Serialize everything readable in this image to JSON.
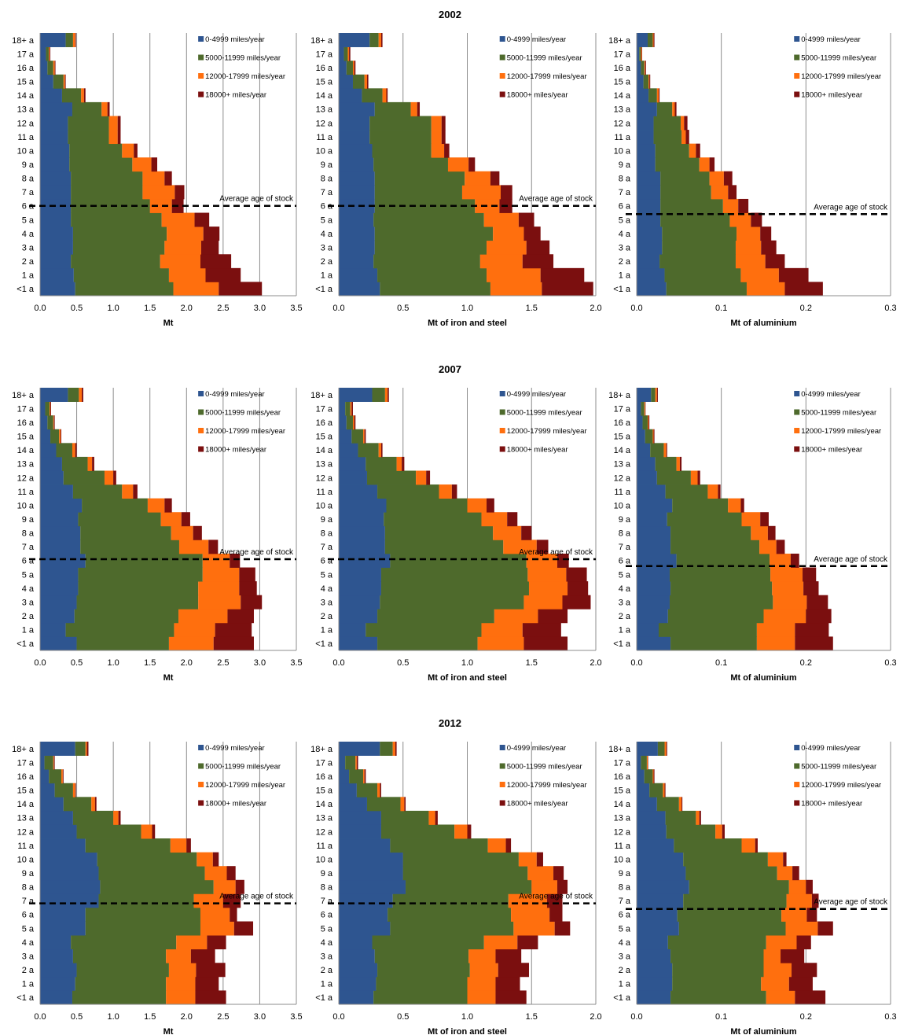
{
  "years": [
    "2002",
    "2007",
    "2012"
  ],
  "legend": [
    "0‐4999 miles/year",
    "5000‐11999 miles/year",
    "12000‐17999 miles/year",
    "18000+ miles/year"
  ],
  "avg_label": "Average age of stock",
  "age_labels": [
    "<1 a",
    "1 a",
    "2 a",
    "3 a",
    "4 a",
    "5 a",
    "6 a",
    "7 a",
    "8 a",
    "9 a",
    "10 a",
    "11 a",
    "12 a",
    "13 a",
    "14 a",
    "15 a",
    "16 a",
    "17 a",
    "18+ a"
  ],
  "colors": [
    "#2e5590",
    "#4e6a2c",
    "#ff6f0e",
    "#7b0f0f"
  ],
  "chart_data": [
    {
      "type": "bar",
      "orientation": "horizontal",
      "stacked": true,
      "year": "2002",
      "xlabel": "Mt",
      "xlim": [
        0,
        3.5
      ],
      "xticks": [
        "0.0",
        "0.5",
        "1.0",
        "1.5",
        "2.0",
        "2.5",
        "3.0",
        "3.5"
      ],
      "average_age": 6.0,
      "series": [
        {
          "name": "0‐4999 miles/year",
          "values": [
            0.48,
            0.46,
            0.42,
            0.45,
            0.45,
            0.42,
            0.42,
            0.42,
            0.42,
            0.4,
            0.4,
            0.38,
            0.38,
            0.44,
            0.3,
            0.18,
            0.1,
            0.08,
            0.35
          ]
        },
        {
          "name": "5000‐11999 miles/year",
          "values": [
            1.34,
            1.3,
            1.22,
            1.25,
            1.28,
            1.24,
            1.08,
            0.98,
            0.98,
            0.86,
            0.72,
            0.56,
            0.56,
            0.4,
            0.26,
            0.14,
            0.08,
            0.04,
            0.1
          ]
        },
        {
          "name": "12000‐17999 miles/year",
          "values": [
            0.62,
            0.5,
            0.55,
            0.5,
            0.5,
            0.45,
            0.3,
            0.44,
            0.3,
            0.26,
            0.16,
            0.12,
            0.12,
            0.08,
            0.04,
            0.02,
            0.02,
            0.01,
            0.03
          ]
        },
        {
          "name": "18000+ miles/year",
          "values": [
            0.59,
            0.48,
            0.42,
            0.24,
            0.22,
            0.2,
            0.16,
            0.13,
            0.1,
            0.08,
            0.05,
            0.04,
            0.04,
            0.03,
            0.02,
            0.01,
            0.01,
            0.01,
            0.01
          ]
        }
      ]
    },
    {
      "type": "bar",
      "orientation": "horizontal",
      "stacked": true,
      "year": "2002",
      "xlabel": "Mt of iron and steel",
      "xlim": [
        0,
        2.0
      ],
      "xticks": [
        "0.0",
        "0.5",
        "1.0",
        "1.5",
        "2.0"
      ],
      "average_age": 6.0,
      "series": [
        {
          "name": "0‐4999 miles/year",
          "values": [
            0.32,
            0.3,
            0.27,
            0.28,
            0.28,
            0.27,
            0.28,
            0.28,
            0.28,
            0.27,
            0.26,
            0.24,
            0.24,
            0.28,
            0.18,
            0.11,
            0.06,
            0.04,
            0.24
          ]
        },
        {
          "name": "5000‐11999 miles/year",
          "values": [
            0.86,
            0.85,
            0.83,
            0.87,
            0.92,
            0.86,
            0.78,
            0.68,
            0.7,
            0.58,
            0.46,
            0.48,
            0.48,
            0.28,
            0.16,
            0.09,
            0.05,
            0.03,
            0.07
          ]
        },
        {
          "name": "12000‐17999 miles/year",
          "values": [
            0.4,
            0.42,
            0.33,
            0.31,
            0.24,
            0.27,
            0.19,
            0.3,
            0.2,
            0.16,
            0.1,
            0.08,
            0.08,
            0.05,
            0.03,
            0.02,
            0.01,
            0.01,
            0.02
          ]
        },
        {
          "name": "18000+ miles/year",
          "values": [
            0.4,
            0.34,
            0.24,
            0.18,
            0.13,
            0.12,
            0.1,
            0.09,
            0.07,
            0.05,
            0.04,
            0.03,
            0.03,
            0.02,
            0.01,
            0.01,
            0.01,
            0.01,
            0.01
          ]
        }
      ]
    },
    {
      "type": "bar",
      "orientation": "horizontal",
      "stacked": true,
      "year": "2002",
      "xlabel": "Mt of aluminium",
      "xlim": [
        0,
        0.3
      ],
      "xticks": [
        "0.0",
        "0.1",
        "0.2",
        "0.3"
      ],
      "average_age": 5.4,
      "series": [
        {
          "name": "0‐4999 miles/year",
          "values": [
            0.035,
            0.033,
            0.027,
            0.03,
            0.03,
            0.028,
            0.028,
            0.028,
            0.028,
            0.022,
            0.022,
            0.02,
            0.02,
            0.024,
            0.014,
            0.008,
            0.005,
            0.003,
            0.013
          ]
        },
        {
          "name": "5000‐11999 miles/year",
          "values": [
            0.095,
            0.09,
            0.09,
            0.087,
            0.088,
            0.082,
            0.074,
            0.06,
            0.058,
            0.052,
            0.04,
            0.033,
            0.032,
            0.018,
            0.01,
            0.006,
            0.004,
            0.002,
            0.006
          ]
        },
        {
          "name": "12000‐17999 miles/year",
          "values": [
            0.045,
            0.045,
            0.035,
            0.03,
            0.028,
            0.025,
            0.018,
            0.02,
            0.017,
            0.012,
            0.008,
            0.005,
            0.004,
            0.003,
            0.002,
            0.001,
            0.001,
            0.001,
            0.001
          ]
        },
        {
          "name": "18000+ miles/year",
          "values": [
            0.045,
            0.035,
            0.023,
            0.018,
            0.013,
            0.013,
            0.012,
            0.01,
            0.01,
            0.006,
            0.005,
            0.004,
            0.004,
            0.002,
            0.001,
            0.001,
            0.001,
            0.0005,
            0.001
          ]
        }
      ]
    },
    {
      "type": "bar",
      "orientation": "horizontal",
      "stacked": true,
      "year": "2007",
      "xlabel": "Mt",
      "xlim": [
        0,
        3.5
      ],
      "xticks": [
        "0.0",
        "0.5",
        "1.0",
        "1.5",
        "2.0",
        "2.5",
        "3.0",
        "3.5"
      ],
      "average_age": 6.1,
      "series": [
        {
          "name": "0‐4999 miles/year",
          "values": [
            0.5,
            0.35,
            0.47,
            0.5,
            0.52,
            0.52,
            0.62,
            0.55,
            0.55,
            0.52,
            0.57,
            0.45,
            0.32,
            0.3,
            0.22,
            0.14,
            0.1,
            0.07,
            0.38
          ]
        },
        {
          "name": "5000‐11999 miles/year",
          "values": [
            1.26,
            1.48,
            1.42,
            1.66,
            1.64,
            1.7,
            1.6,
            1.35,
            1.24,
            1.13,
            0.9,
            0.67,
            0.56,
            0.35,
            0.22,
            0.12,
            0.08,
            0.06,
            0.15
          ]
        },
        {
          "name": "12000‐17999 miles/year",
          "values": [
            0.61,
            0.56,
            0.67,
            0.58,
            0.56,
            0.5,
            0.37,
            0.4,
            0.3,
            0.28,
            0.23,
            0.15,
            0.12,
            0.06,
            0.04,
            0.02,
            0.01,
            0.01,
            0.04
          ]
        },
        {
          "name": "18000+ miles/year",
          "values": [
            0.55,
            0.5,
            0.36,
            0.29,
            0.24,
            0.22,
            0.14,
            0.13,
            0.12,
            0.12,
            0.1,
            0.06,
            0.04,
            0.03,
            0.02,
            0.01,
            0.01,
            0.01,
            0.02
          ]
        }
      ]
    },
    {
      "type": "bar",
      "orientation": "horizontal",
      "stacked": true,
      "year": "2007",
      "xlabel": "Mt of iron and steel",
      "xlim": [
        0,
        2.0
      ],
      "xticks": [
        "0.0",
        "0.5",
        "1.0",
        "1.5",
        "2.0"
      ],
      "average_age": 6.1,
      "series": [
        {
          "name": "0‐4999 miles/year",
          "values": [
            0.3,
            0.21,
            0.3,
            0.32,
            0.33,
            0.33,
            0.4,
            0.36,
            0.36,
            0.35,
            0.37,
            0.3,
            0.22,
            0.21,
            0.15,
            0.1,
            0.06,
            0.05,
            0.26
          ]
        },
        {
          "name": "5000‐11999 miles/year",
          "values": [
            0.78,
            0.9,
            0.91,
            1.12,
            1.15,
            1.14,
            1.06,
            0.92,
            0.84,
            0.76,
            0.63,
            0.48,
            0.38,
            0.24,
            0.16,
            0.09,
            0.05,
            0.04,
            0.1
          ]
        },
        {
          "name": "12000‐17999 miles/year",
          "values": [
            0.36,
            0.32,
            0.34,
            0.3,
            0.3,
            0.3,
            0.24,
            0.26,
            0.22,
            0.2,
            0.15,
            0.1,
            0.08,
            0.04,
            0.02,
            0.01,
            0.01,
            0.01,
            0.02
          ]
        },
        {
          "name": "18000+ miles/year",
          "values": [
            0.34,
            0.3,
            0.23,
            0.22,
            0.16,
            0.16,
            0.09,
            0.09,
            0.08,
            0.08,
            0.06,
            0.04,
            0.03,
            0.02,
            0.01,
            0.01,
            0.01,
            0.01,
            0.01
          ]
        }
      ]
    },
    {
      "type": "bar",
      "orientation": "horizontal",
      "stacked": true,
      "year": "2007",
      "xlabel": "Mt of aluminium",
      "xlim": [
        0,
        0.3
      ],
      "xticks": [
        "0.0",
        "0.1",
        "0.2",
        "0.3"
      ],
      "average_age": 5.6,
      "series": [
        {
          "name": "0‐4999 miles/year",
          "values": [
            0.04,
            0.026,
            0.037,
            0.039,
            0.04,
            0.039,
            0.047,
            0.04,
            0.04,
            0.036,
            0.042,
            0.034,
            0.024,
            0.022,
            0.016,
            0.01,
            0.007,
            0.005,
            0.017
          ]
        },
        {
          "name": "5000‐11999 miles/year",
          "values": [
            0.102,
            0.116,
            0.113,
            0.122,
            0.12,
            0.119,
            0.11,
            0.105,
            0.095,
            0.088,
            0.066,
            0.05,
            0.04,
            0.025,
            0.016,
            0.009,
            0.006,
            0.004,
            0.005
          ]
        },
        {
          "name": "12000‐17999 miles/year",
          "values": [
            0.045,
            0.045,
            0.05,
            0.04,
            0.037,
            0.038,
            0.025,
            0.02,
            0.02,
            0.022,
            0.015,
            0.012,
            0.008,
            0.004,
            0.003,
            0.001,
            0.001,
            0.001,
            0.002
          ]
        },
        {
          "name": "18000+ miles/year",
          "values": [
            0.045,
            0.04,
            0.03,
            0.025,
            0.018,
            0.016,
            0.01,
            0.01,
            0.009,
            0.01,
            0.004,
            0.003,
            0.003,
            0.002,
            0.001,
            0.001,
            0.001,
            0.0005,
            0.001
          ]
        }
      ]
    },
    {
      "type": "bar",
      "orientation": "horizontal",
      "stacked": true,
      "year": "2012",
      "xlabel": "Mt",
      "xlim": [
        0,
        3.5
      ],
      "xticks": [
        "0.0",
        "0.5",
        "1.0",
        "1.5",
        "2.0",
        "2.5",
        "3.0",
        "3.5"
      ],
      "average_age": 6.8,
      "series": [
        {
          "name": "0‐4999 miles/year",
          "values": [
            0.44,
            0.48,
            0.5,
            0.45,
            0.42,
            0.62,
            0.62,
            0.8,
            0.82,
            0.8,
            0.78,
            0.62,
            0.5,
            0.45,
            0.32,
            0.2,
            0.12,
            0.06,
            0.48
          ]
        },
        {
          "name": "5000‐11999 miles/year",
          "values": [
            1.28,
            1.24,
            1.26,
            1.27,
            1.44,
            1.57,
            1.57,
            1.3,
            1.55,
            1.45,
            1.36,
            1.16,
            0.88,
            0.55,
            0.38,
            0.25,
            0.17,
            0.12,
            0.14
          ]
        },
        {
          "name": "12000‐17999 miles/year",
          "values": [
            0.4,
            0.4,
            0.37,
            0.34,
            0.42,
            0.46,
            0.4,
            0.4,
            0.3,
            0.3,
            0.22,
            0.22,
            0.15,
            0.07,
            0.05,
            0.03,
            0.02,
            0.01,
            0.02
          ]
        },
        {
          "name": "18000+ miles/year",
          "values": [
            0.42,
            0.32,
            0.4,
            0.33,
            0.26,
            0.26,
            0.1,
            0.24,
            0.12,
            0.12,
            0.08,
            0.06,
            0.04,
            0.03,
            0.02,
            0.01,
            0.01,
            0.01,
            0.02
          ]
        }
      ]
    },
    {
      "type": "bar",
      "orientation": "horizontal",
      "stacked": true,
      "year": "2012",
      "xlabel": "Mt of iron and steel",
      "xlim": [
        0,
        2.0
      ],
      "xticks": [
        "0.0",
        "0.5",
        "1.0",
        "1.5",
        "2.0"
      ],
      "average_age": 6.8,
      "series": [
        {
          "name": "0‐4999 miles/year",
          "values": [
            0.27,
            0.29,
            0.3,
            0.28,
            0.26,
            0.4,
            0.38,
            0.42,
            0.52,
            0.5,
            0.5,
            0.4,
            0.33,
            0.33,
            0.22,
            0.14,
            0.08,
            0.05,
            0.32
          ]
        },
        {
          "name": "5000‐11999 miles/year",
          "values": [
            0.73,
            0.71,
            0.72,
            0.73,
            0.87,
            0.96,
            0.96,
            0.9,
            0.98,
            0.97,
            0.9,
            0.76,
            0.57,
            0.37,
            0.26,
            0.16,
            0.11,
            0.08,
            0.1
          ]
        },
        {
          "name": "12000‐17999 miles/year",
          "values": [
            0.22,
            0.22,
            0.22,
            0.21,
            0.26,
            0.32,
            0.3,
            0.3,
            0.2,
            0.2,
            0.14,
            0.14,
            0.1,
            0.05,
            0.03,
            0.02,
            0.01,
            0.01,
            0.02
          ]
        },
        {
          "name": "18000+ miles/year",
          "values": [
            0.24,
            0.19,
            0.24,
            0.2,
            0.16,
            0.12,
            0.1,
            0.12,
            0.08,
            0.08,
            0.05,
            0.04,
            0.03,
            0.02,
            0.01,
            0.01,
            0.01,
            0.01,
            0.01
          ]
        }
      ]
    },
    {
      "type": "bar",
      "orientation": "horizontal",
      "stacked": true,
      "year": "2012",
      "xlabel": "Mt of aluminium",
      "xlim": [
        0,
        0.3
      ],
      "xticks": [
        "0.0",
        "0.1",
        "0.2",
        "0.3"
      ],
      "average_age": 6.4,
      "series": [
        {
          "name": "0‐4999 miles/year",
          "values": [
            0.04,
            0.042,
            0.042,
            0.04,
            0.037,
            0.05,
            0.048,
            0.055,
            0.062,
            0.058,
            0.055,
            0.044,
            0.035,
            0.034,
            0.024,
            0.015,
            0.009,
            0.005,
            0.025
          ]
        },
        {
          "name": "5000‐11999 miles/year",
          "values": [
            0.113,
            0.105,
            0.108,
            0.11,
            0.116,
            0.126,
            0.123,
            0.122,
            0.118,
            0.108,
            0.1,
            0.08,
            0.058,
            0.036,
            0.026,
            0.016,
            0.01,
            0.007,
            0.008
          ]
        },
        {
          "name": "12000‐17999 miles/year",
          "values": [
            0.034,
            0.033,
            0.033,
            0.02,
            0.036,
            0.038,
            0.03,
            0.03,
            0.02,
            0.018,
            0.018,
            0.016,
            0.008,
            0.004,
            0.003,
            0.002,
            0.001,
            0.001,
            0.002
          ]
        },
        {
          "name": "18000+ miles/year",
          "values": [
            0.036,
            0.028,
            0.03,
            0.028,
            0.017,
            0.018,
            0.012,
            0.008,
            0.008,
            0.008,
            0.004,
            0.003,
            0.003,
            0.002,
            0.001,
            0.001,
            0.001,
            0.0005,
            0.001
          ]
        }
      ]
    }
  ]
}
